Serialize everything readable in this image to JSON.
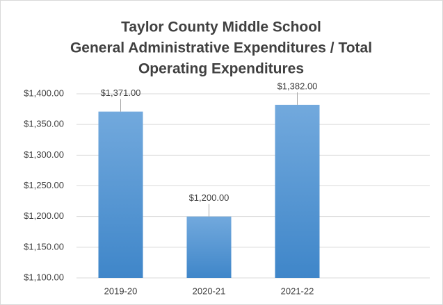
{
  "chart_data": {
    "type": "bar",
    "title": [
      "Taylor County Middle School",
      "General Administrative Expenditures / Total",
      "Operating Expenditures"
    ],
    "categories": [
      "2019-20",
      "2020-21",
      "2021-22",
      null
    ],
    "values": [
      1371,
      1200,
      1382,
      null
    ],
    "value_labels": [
      "$1,371.00",
      "$1,200.00",
      "$1,382.00",
      null
    ],
    "color": "#5b9bd5",
    "ylim": [
      1100,
      1400
    ],
    "yticks": [
      {
        "value": 1100,
        "label": "$1,100.00"
      },
      {
        "value": 1150,
        "label": "$1,150.00"
      },
      {
        "value": 1200,
        "label": "$1,200.00"
      },
      {
        "value": 1250,
        "label": "$1,250.00"
      },
      {
        "value": 1300,
        "label": "$1,300.00"
      },
      {
        "value": 1350,
        "label": "$1,350.00"
      },
      {
        "value": 1400,
        "label": "$1,400.00"
      }
    ],
    "grid": true
  }
}
